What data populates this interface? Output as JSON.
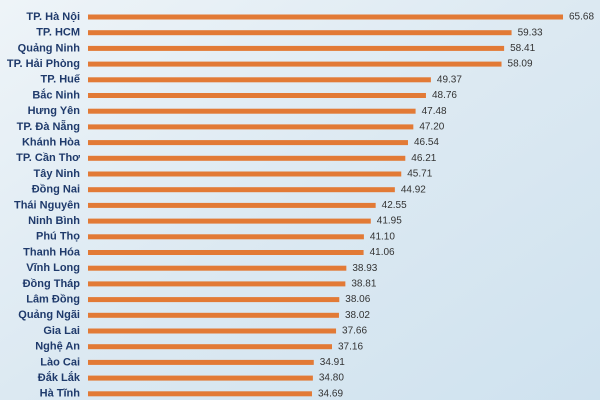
{
  "chart_data": {
    "type": "bar",
    "orientation": "horizontal",
    "color": "#e27a36",
    "categories": [
      "TP. Hà Nội",
      "TP. HCM",
      "Quảng Ninh",
      "TP. Hải Phòng",
      "TP. Huế",
      "Bắc Ninh",
      "Hưng Yên",
      "TP. Đà Nẵng",
      "Khánh Hòa",
      "TP. Cần Thơ",
      "Tây Ninh",
      "Đồng Nai",
      "Thái Nguyên",
      "Ninh Bình",
      "Phú Thọ",
      "Thanh Hóa",
      "Vĩnh Long",
      "Đồng Tháp",
      "Lâm Đồng",
      "Quảng Ngãi",
      "Gia Lai",
      "Nghệ An",
      "Lào Cai",
      "Đắk Lắk",
      "Hà Tĩnh"
    ],
    "values": [
      65.68,
      59.33,
      58.41,
      58.09,
      49.37,
      48.76,
      47.48,
      47.2,
      46.54,
      46.21,
      45.71,
      44.92,
      42.55,
      41.95,
      41.1,
      41.06,
      38.93,
      38.81,
      38.06,
      38.02,
      37.66,
      37.16,
      34.91,
      34.8,
      34.69
    ],
    "value_labels": [
      "65.68",
      "59.33",
      "58.41",
      "58.09",
      "49.37",
      "48.76",
      "47.48",
      "47.20",
      "46.54",
      "46.21",
      "45.71",
      "44.92",
      "42.55",
      "41.95",
      "41.10",
      "41.06",
      "38.93",
      "38.81",
      "38.06",
      "38.02",
      "37.66",
      "37.16",
      "34.91",
      "34.80",
      "34.69"
    ]
  }
}
